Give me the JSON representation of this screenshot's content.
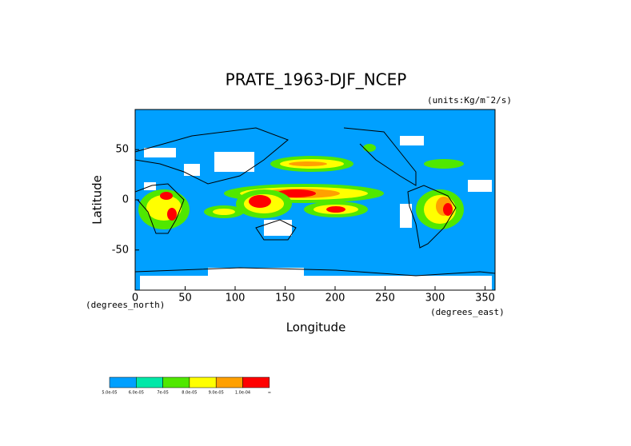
{
  "chart_data": {
    "type": "map",
    "title": "PRATE_1963-DJF_NCEP",
    "subtitle": "(units:Kg/m¯2/s)",
    "xlabel": "Longitude",
    "ylabel": "Latitude",
    "x_units": "(degrees_east)",
    "y_units": "(degrees_north)",
    "xlim": [
      0,
      360
    ],
    "ylim": [
      -90,
      90
    ],
    "xticks": [
      0,
      50,
      100,
      150,
      200,
      250,
      300,
      350
    ],
    "yticks": [
      -50,
      0,
      50
    ],
    "colorbar": {
      "colors": [
        "#00a0ff",
        "#00e8a8",
        "#50e800",
        "#ffff00",
        "#ffa000",
        "#ff0000"
      ],
      "labels": [
        "5.0e-05",
        "6.0e-05",
        "7e-05",
        "8.0e-05",
        "9.0e-05",
        "1.0e-04",
        "∞"
      ]
    }
  }
}
